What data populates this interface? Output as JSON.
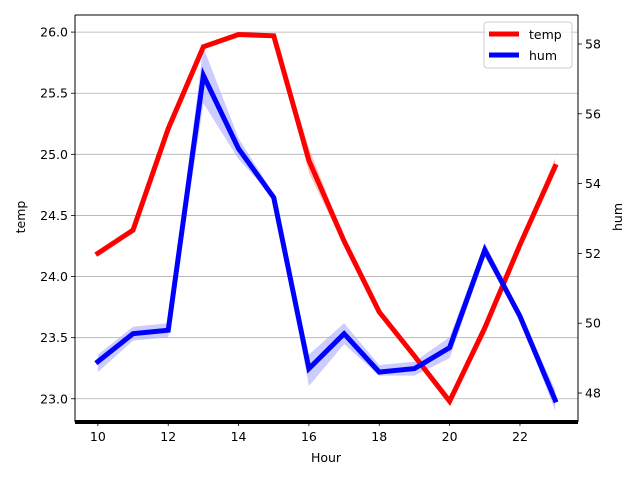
{
  "chart_data": {
    "type": "line",
    "xlabel": "Hour",
    "ylabel_left": "temp",
    "ylabel_right": "hum",
    "x_ticks": [
      10,
      12,
      14,
      16,
      18,
      20,
      22
    ],
    "y_left_ticks": [
      "23.0",
      "23.5",
      "24.0",
      "24.5",
      "25.0",
      "25.5",
      "26.0"
    ],
    "y_right_ticks": [
      "48",
      "50",
      "52",
      "54",
      "56",
      "58"
    ],
    "xlim": [
      9.35,
      23.65
    ],
    "ylim_left": [
      22.81,
      26.14
    ],
    "ylim_right": [
      47.17,
      58.83
    ],
    "grid": "horizontal (left axis)",
    "legend_position": "top-right",
    "x": [
      10,
      11,
      12,
      13,
      14,
      15,
      16,
      17,
      18,
      19,
      20,
      21,
      22,
      23
    ],
    "series": [
      {
        "name": "temp",
        "axis": "left",
        "color": "#ff0000",
        "band_color": "#ff9999",
        "values": [
          24.19,
          24.38,
          25.21,
          25.88,
          25.98,
          25.97,
          24.95,
          24.29,
          23.71,
          23.35,
          22.98,
          23.58,
          24.26,
          24.9
        ],
        "lower": [
          24.19,
          24.38,
          25.15,
          25.86,
          25.97,
          25.97,
          24.85,
          24.25,
          23.69,
          23.33,
          22.96,
          23.52,
          24.24,
          24.85
        ],
        "upper": [
          24.19,
          24.38,
          25.26,
          25.9,
          25.99,
          25.98,
          25.05,
          24.32,
          23.73,
          23.37,
          23.0,
          23.62,
          24.28,
          24.97
        ]
      },
      {
        "name": "hum",
        "axis": "right",
        "color": "#0000ff",
        "band_color": "#aaaaff",
        "values": [
          48.9,
          49.7,
          49.8,
          57.1,
          55.0,
          53.6,
          48.7,
          49.7,
          48.6,
          48.7,
          49.3,
          52.1,
          50.2,
          47.8
        ],
        "lower": [
          48.6,
          49.5,
          49.6,
          56.3,
          54.7,
          53.6,
          48.2,
          49.4,
          48.5,
          48.5,
          49.0,
          51.9,
          50.1,
          47.5
        ],
        "upper": [
          49.1,
          49.9,
          50.0,
          57.9,
          55.3,
          53.7,
          49.1,
          50.0,
          48.8,
          48.9,
          49.6,
          52.3,
          50.3,
          48.1
        ]
      }
    ]
  }
}
